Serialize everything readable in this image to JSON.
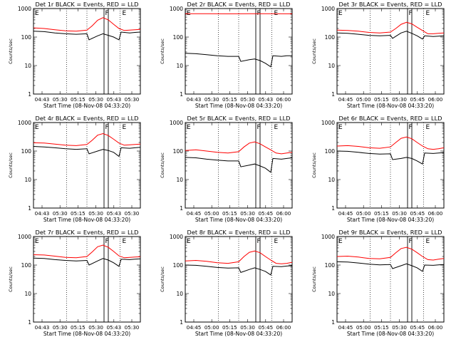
{
  "chart_data": [
    {
      "type": "line",
      "title": "Det 1r BLACK = Events, RED = LLD",
      "xlabel": "Start Time (08-Nov-08 04:33:20)",
      "ylabel": "Counts/sec",
      "yscale": "log",
      "ylim": [
        1,
        1000
      ],
      "yticks": [
        "1",
        "10",
        "100",
        "1000"
      ],
      "xticks": [
        "04:43",
        "05:30",
        "05:15",
        "05:30",
        "05:43",
        "05:30"
      ],
      "markers": {
        "e_label": "E",
        "f_label": "F"
      },
      "series": [
        {
          "color": "#ff0000",
          "x": [
            0,
            0.1,
            0.2,
            0.3,
            0.4,
            0.5,
            0.55,
            0.6,
            0.65,
            0.7,
            0.75,
            0.8,
            0.85,
            0.9,
            0.95,
            1
          ],
          "values": [
            210,
            200,
            180,
            165,
            160,
            175,
            250,
            390,
            480,
            400,
            280,
            200,
            170,
            175,
            180,
            185
          ]
        },
        {
          "color": "#000000",
          "x": [
            0,
            0.1,
            0.2,
            0.3,
            0.4,
            0.5,
            0.52,
            0.6,
            0.65,
            0.7,
            0.75,
            0.8,
            0.82,
            0.9,
            0.95,
            1
          ],
          "values": [
            160,
            155,
            140,
            130,
            125,
            130,
            80,
            110,
            130,
            115,
            100,
            80,
            150,
            140,
            145,
            150
          ]
        }
      ]
    },
    {
      "type": "line",
      "title": "Det 2r BLACK = Events, RED = LLD",
      "xlabel": "Start Time (08-Nov-08 04:33:20)",
      "ylabel": "Counts/sec",
      "yscale": "log",
      "ylim": [
        1,
        1000
      ],
      "yticks": [
        "1",
        "10",
        "100",
        "1000"
      ],
      "xticks": [
        "04:43",
        "05:30",
        "05:15",
        "05:30",
        "05:43",
        "06:00"
      ],
      "markers": {
        "e_label": "E",
        "f_label": "F"
      },
      "series": [
        {
          "color": "#ff0000",
          "x": [
            0,
            0.2,
            0.4,
            0.6,
            0.8,
            1
          ],
          "values": [
            660,
            660,
            655,
            660,
            660,
            655
          ]
        },
        {
          "color": "#000000",
          "x": [
            0,
            0.1,
            0.2,
            0.3,
            0.4,
            0.5,
            0.52,
            0.6,
            0.65,
            0.7,
            0.75,
            0.8,
            0.82,
            0.9,
            0.95,
            1
          ],
          "values": [
            27,
            26,
            24,
            22,
            21,
            21,
            14,
            16,
            17,
            15,
            12,
            9,
            22,
            21,
            22,
            22
          ]
        }
      ]
    },
    {
      "type": "line",
      "title": "Det 3r BLACK = Events, RED = LLD",
      "xlabel": "Start Time (08-Nov-08 04:33:20)",
      "ylabel": "Counts/sec",
      "yscale": "log",
      "ylim": [
        1,
        1000
      ],
      "yticks": [
        "1",
        "10",
        "100",
        "1000"
      ],
      "xticks": [
        "04:45",
        "05:00",
        "05:15",
        "05:30",
        "05:45",
        "06:00"
      ],
      "markers": {
        "e_label": "E",
        "f_label": "F"
      },
      "series": [
        {
          "color": "#ff0000",
          "x": [
            0,
            0.1,
            0.2,
            0.3,
            0.4,
            0.5,
            0.55,
            0.6,
            0.65,
            0.7,
            0.75,
            0.8,
            0.85,
            0.9,
            0.95,
            1
          ],
          "values": [
            175,
            170,
            160,
            145,
            140,
            150,
            200,
            280,
            330,
            290,
            220,
            170,
            130,
            130,
            135,
            140
          ]
        },
        {
          "color": "#000000",
          "x": [
            0,
            0.1,
            0.2,
            0.3,
            0.4,
            0.5,
            0.52,
            0.6,
            0.65,
            0.7,
            0.75,
            0.8,
            0.82,
            0.9,
            0.95,
            1
          ],
          "values": [
            140,
            135,
            125,
            115,
            110,
            115,
            90,
            140,
            160,
            135,
            110,
            85,
            110,
            105,
            108,
            110
          ]
        }
      ]
    },
    {
      "type": "line",
      "title": "Det 4r BLACK = Events, RED = LLD",
      "xlabel": "Start Time (08-Nov-08 04:33:20)",
      "ylabel": "Counts/sec",
      "yscale": "log",
      "ylim": [
        1,
        1000
      ],
      "yticks": [
        "1",
        "10",
        "100",
        "1000"
      ],
      "xticks": [
        "04:43",
        "05:30",
        "05:15",
        "05:30",
        "05:43",
        "05:30"
      ],
      "markers": {
        "e_label": "E",
        "f_label": "F"
      },
      "series": [
        {
          "color": "#ff0000",
          "x": [
            0,
            0.1,
            0.2,
            0.3,
            0.4,
            0.5,
            0.55,
            0.6,
            0.65,
            0.7,
            0.75,
            0.8,
            0.85,
            0.9,
            0.95,
            1
          ],
          "values": [
            195,
            190,
            175,
            160,
            155,
            170,
            240,
            360,
            410,
            350,
            260,
            190,
            160,
            165,
            170,
            175
          ]
        },
        {
          "color": "#000000",
          "x": [
            0,
            0.1,
            0.2,
            0.3,
            0.4,
            0.5,
            0.52,
            0.6,
            0.65,
            0.7,
            0.75,
            0.8,
            0.82,
            0.9,
            0.95,
            1
          ],
          "values": [
            145,
            140,
            130,
            120,
            115,
            120,
            80,
            100,
            115,
            105,
            90,
            65,
            130,
            125,
            130,
            135
          ]
        }
      ]
    },
    {
      "type": "line",
      "title": "Det 5r BLACK = Events, RED = LLD",
      "xlabel": "Start Time (08-Nov-08 04:33:20)",
      "ylabel": "Counts/sec",
      "yscale": "log",
      "ylim": [
        1,
        1000
      ],
      "yticks": [
        "1",
        "10",
        "100",
        "1000"
      ],
      "xticks": [
        "04:45",
        "05:00",
        "05:15",
        "05:30",
        "05:45",
        "06:00"
      ],
      "markers": {
        "e_label": "E",
        "f_label": "F"
      },
      "series": [
        {
          "color": "#ff0000",
          "x": [
            0,
            0.1,
            0.2,
            0.3,
            0.4,
            0.5,
            0.55,
            0.6,
            0.65,
            0.7,
            0.75,
            0.8,
            0.85,
            0.9,
            0.95,
            1
          ],
          "values": [
            105,
            110,
            100,
            90,
            85,
            95,
            140,
            190,
            210,
            180,
            140,
            110,
            85,
            80,
            85,
            90
          ]
        },
        {
          "color": "#000000",
          "x": [
            0,
            0.1,
            0.2,
            0.3,
            0.4,
            0.5,
            0.52,
            0.6,
            0.65,
            0.7,
            0.75,
            0.8,
            0.82,
            0.9,
            0.95,
            1
          ],
          "values": [
            60,
            58,
            52,
            48,
            45,
            45,
            28,
            32,
            35,
            30,
            25,
            18,
            55,
            52,
            55,
            58
          ]
        }
      ]
    },
    {
      "type": "line",
      "title": "Det 6r BLACK = Events, RED = LLD",
      "xlabel": "Start Time (08-Nov-08 04:33:20)",
      "ylabel": "Counts/sec",
      "yscale": "log",
      "ylim": [
        1,
        1000
      ],
      "yticks": [
        "1",
        "10",
        "100",
        "1000"
      ],
      "xticks": [
        "04:45",
        "05:00",
        "05:15",
        "05:30",
        "05:45",
        "06:00"
      ],
      "markers": {
        "e_label": "E",
        "f_label": "F"
      },
      "series": [
        {
          "color": "#ff0000",
          "x": [
            0,
            0.1,
            0.2,
            0.3,
            0.4,
            0.5,
            0.55,
            0.6,
            0.65,
            0.7,
            0.75,
            0.8,
            0.85,
            0.9,
            0.95,
            1
          ],
          "values": [
            150,
            155,
            145,
            130,
            125,
            140,
            200,
            280,
            310,
            270,
            200,
            150,
            120,
            115,
            120,
            130
          ]
        },
        {
          "color": "#000000",
          "x": [
            0,
            0.1,
            0.2,
            0.3,
            0.4,
            0.5,
            0.52,
            0.6,
            0.65,
            0.7,
            0.75,
            0.8,
            0.82,
            0.9,
            0.95,
            1
          ],
          "values": [
            100,
            98,
            90,
            82,
            78,
            80,
            50,
            55,
            60,
            55,
            45,
            35,
            85,
            82,
            85,
            88
          ]
        }
      ]
    },
    {
      "type": "line",
      "title": "Det 7r BLACK = Events, RED = LLD",
      "xlabel": "Start Time (08-Nov-08 04:33:20)",
      "ylabel": "Counts/sec",
      "yscale": "log",
      "ylim": [
        1,
        1000
      ],
      "yticks": [
        "1",
        "10",
        "100",
        "1000"
      ],
      "xticks": [
        "04:43",
        "05:30",
        "05:15",
        "05:30",
        "05:43",
        "05:30"
      ],
      "markers": {
        "e_label": "E",
        "f_label": "F"
      },
      "series": [
        {
          "color": "#ff0000",
          "x": [
            0,
            0.1,
            0.2,
            0.3,
            0.4,
            0.5,
            0.55,
            0.6,
            0.65,
            0.7,
            0.75,
            0.8,
            0.85,
            0.9,
            0.95,
            1
          ],
          "values": [
            230,
            225,
            205,
            185,
            180,
            200,
            290,
            440,
            500,
            420,
            300,
            210,
            180,
            185,
            190,
            195
          ]
        },
        {
          "color": "#000000",
          "x": [
            0,
            0.1,
            0.2,
            0.3,
            0.4,
            0.5,
            0.52,
            0.6,
            0.65,
            0.7,
            0.75,
            0.8,
            0.82,
            0.9,
            0.95,
            1
          ],
          "values": [
            175,
            170,
            155,
            145,
            140,
            145,
            100,
            140,
            170,
            150,
            120,
            90,
            160,
            155,
            160,
            165
          ]
        }
      ]
    },
    {
      "type": "line",
      "title": "Det 8r BLACK = Events, RED = LLD",
      "xlabel": "Start Time (08-Nov-08 04:33:20)",
      "ylabel": "Counts/sec",
      "yscale": "log",
      "ylim": [
        1,
        1000
      ],
      "yticks": [
        "1",
        "10",
        "100",
        "1000"
      ],
      "xticks": [
        "04:45",
        "05:00",
        "05:15",
        "05:30",
        "05:45",
        "06:00"
      ],
      "markers": {
        "e_label": "E",
        "f_label": "F"
      },
      "series": [
        {
          "color": "#ff0000",
          "x": [
            0,
            0.1,
            0.2,
            0.3,
            0.4,
            0.5,
            0.55,
            0.6,
            0.65,
            0.7,
            0.75,
            0.8,
            0.85,
            0.9,
            0.95,
            1
          ],
          "values": [
            140,
            145,
            135,
            120,
            115,
            130,
            200,
            280,
            310,
            270,
            200,
            150,
            115,
            110,
            115,
            125
          ]
        },
        {
          "color": "#000000",
          "x": [
            0,
            0.1,
            0.2,
            0.3,
            0.4,
            0.5,
            0.52,
            0.6,
            0.65,
            0.7,
            0.75,
            0.8,
            0.82,
            0.9,
            0.95,
            1
          ],
          "values": [
            100,
            98,
            90,
            82,
            78,
            80,
            55,
            70,
            80,
            70,
            60,
            45,
            90,
            88,
            92,
            95
          ]
        }
      ]
    },
    {
      "type": "line",
      "title": "Det 9r BLACK = Events, RED = LLD",
      "xlabel": "Start Time (08-Nov-08 04:33:20)",
      "ylabel": "Counts/sec",
      "yscale": "log",
      "ylim": [
        1,
        1000
      ],
      "yticks": [
        "1",
        "10",
        "100",
        "1000"
      ],
      "xticks": [
        "04:45",
        "05:00",
        "05:15",
        "05:30",
        "05:45",
        "06:00"
      ],
      "markers": {
        "e_label": "E",
        "f_label": "F"
      },
      "series": [
        {
          "color": "#ff0000",
          "x": [
            0,
            0.1,
            0.2,
            0.3,
            0.4,
            0.5,
            0.55,
            0.6,
            0.65,
            0.7,
            0.75,
            0.8,
            0.85,
            0.9,
            0.95,
            1
          ],
          "values": [
            200,
            205,
            190,
            170,
            165,
            185,
            270,
            380,
            420,
            360,
            270,
            200,
            155,
            150,
            160,
            170
          ]
        },
        {
          "color": "#000000",
          "x": [
            0,
            0.1,
            0.2,
            0.3,
            0.4,
            0.5,
            0.52,
            0.6,
            0.65,
            0.7,
            0.75,
            0.8,
            0.82,
            0.9,
            0.95,
            1
          ],
          "values": [
            130,
            128,
            118,
            108,
            102,
            105,
            75,
            95,
            110,
            95,
            80,
            60,
            100,
            98,
            102,
            105
          ]
        }
      ]
    }
  ]
}
